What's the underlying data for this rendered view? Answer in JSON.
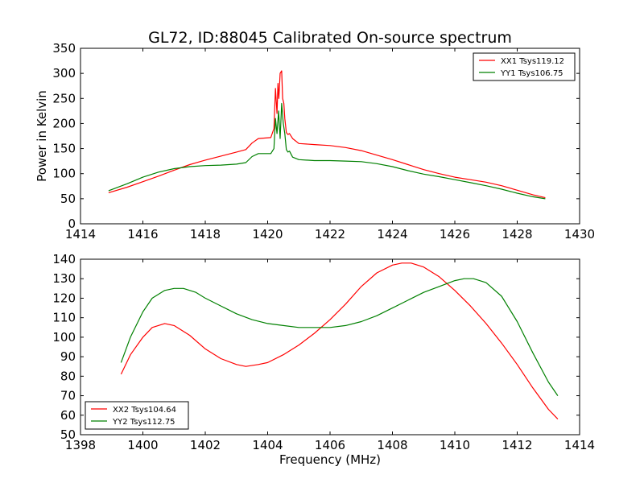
{
  "chart_data": [
    {
      "type": "line",
      "title": "GL72, ID:88045 Calibrated On-source spectrum",
      "xlabel": "",
      "ylabel": "Power in Kelvin",
      "xlim": [
        1414,
        1430
      ],
      "ylim": [
        0,
        350
      ],
      "xticks": [
        1414,
        1416,
        1418,
        1420,
        1422,
        1424,
        1426,
        1428,
        1430
      ],
      "yticks": [
        0,
        50,
        100,
        150,
        200,
        250,
        300,
        350
      ],
      "legend_position": "top-right",
      "series": [
        {
          "name": "XX1 Tsys119.12",
          "color": "#ff0000",
          "x": [
            1414.9,
            1415.5,
            1416.0,
            1416.5,
            1417.0,
            1417.5,
            1418.0,
            1418.5,
            1419.0,
            1419.3,
            1419.5,
            1419.7,
            1419.9,
            1420.1,
            1420.2,
            1420.25,
            1420.3,
            1420.33,
            1420.36,
            1420.4,
            1420.45,
            1420.48,
            1420.52,
            1420.55,
            1420.6,
            1420.65,
            1420.7,
            1420.8,
            1421.0,
            1421.5,
            1422.0,
            1422.5,
            1423.0,
            1423.5,
            1424.0,
            1424.5,
            1425.0,
            1425.5,
            1426.0,
            1426.5,
            1427.0,
            1427.5,
            1428.0,
            1428.5,
            1428.9
          ],
          "y": [
            62,
            73,
            84,
            95,
            107,
            118,
            127,
            135,
            143,
            148,
            161,
            170,
            171,
            172,
            190,
            270,
            220,
            280,
            250,
            300,
            305,
            250,
            240,
            210,
            182,
            178,
            180,
            170,
            160,
            158,
            156,
            152,
            146,
            137,
            128,
            118,
            108,
            100,
            93,
            88,
            83,
            76,
            67,
            58,
            52
          ]
        },
        {
          "name": "YY1 Tsys106.75",
          "color": "#008000",
          "x": [
            1414.9,
            1415.5,
            1416.0,
            1416.5,
            1417.0,
            1417.5,
            1418.0,
            1418.5,
            1419.0,
            1419.3,
            1419.5,
            1419.7,
            1419.9,
            1420.1,
            1420.2,
            1420.25,
            1420.3,
            1420.35,
            1420.4,
            1420.45,
            1420.5,
            1420.55,
            1420.6,
            1420.65,
            1420.7,
            1420.8,
            1421.0,
            1421.5,
            1422.0,
            1422.5,
            1423.0,
            1423.5,
            1424.0,
            1424.5,
            1425.0,
            1425.5,
            1426.0,
            1426.5,
            1427.0,
            1427.5,
            1428.0,
            1428.5,
            1428.9
          ],
          "y": [
            66,
            80,
            93,
            103,
            110,
            114,
            116,
            117,
            119,
            122,
            134,
            140,
            140,
            140,
            150,
            210,
            180,
            225,
            170,
            240,
            200,
            180,
            148,
            143,
            145,
            133,
            128,
            126,
            126,
            125,
            124,
            120,
            114,
            106,
            99,
            94,
            88,
            82,
            76,
            69,
            61,
            54,
            50
          ]
        }
      ]
    },
    {
      "type": "line",
      "title": "",
      "xlabel": "Frequency (MHz)",
      "ylabel": "",
      "xlim": [
        1398,
        1414
      ],
      "ylim": [
        50,
        140
      ],
      "xticks": [
        1398,
        1400,
        1402,
        1404,
        1406,
        1408,
        1410,
        1412,
        1414
      ],
      "yticks": [
        50,
        60,
        70,
        80,
        90,
        100,
        110,
        120,
        130,
        140
      ],
      "legend_position": "bottom-left",
      "series": [
        {
          "name": "XX2 Tsys104.64",
          "color": "#ff0000",
          "x": [
            1399.3,
            1399.6,
            1400.0,
            1400.3,
            1400.7,
            1401.0,
            1401.5,
            1402.0,
            1402.5,
            1403.0,
            1403.3,
            1403.7,
            1404.0,
            1404.5,
            1405.0,
            1405.5,
            1406.0,
            1406.5,
            1407.0,
            1407.5,
            1408.0,
            1408.3,
            1408.6,
            1409.0,
            1409.5,
            1410.0,
            1410.5,
            1411.0,
            1411.5,
            1412.0,
            1412.5,
            1413.0,
            1413.3
          ],
          "y": [
            81,
            91,
            100,
            105,
            107,
            106,
            101,
            94,
            89,
            86,
            85,
            86,
            87,
            91,
            96,
            102,
            109,
            117,
            126,
            133,
            137,
            138,
            138,
            136,
            131,
            124,
            116,
            107,
            97,
            86,
            74,
            63,
            58
          ]
        },
        {
          "name": "YY2 Tsys112.75",
          "color": "#008000",
          "x": [
            1399.3,
            1399.6,
            1400.0,
            1400.3,
            1400.7,
            1401.0,
            1401.3,
            1401.7,
            1402.0,
            1402.5,
            1403.0,
            1403.5,
            1404.0,
            1404.5,
            1405.0,
            1405.5,
            1406.0,
            1406.5,
            1407.0,
            1407.5,
            1408.0,
            1408.5,
            1409.0,
            1409.5,
            1410.0,
            1410.3,
            1410.6,
            1411.0,
            1411.5,
            1412.0,
            1412.5,
            1413.0,
            1413.3
          ],
          "y": [
            87,
            100,
            113,
            120,
            124,
            125,
            125,
            123,
            120,
            116,
            112,
            109,
            107,
            106,
            105,
            105,
            105,
            106,
            108,
            111,
            115,
            119,
            123,
            126,
            129,
            130,
            130,
            128,
            121,
            108,
            92,
            77,
            70
          ]
        }
      ]
    }
  ]
}
